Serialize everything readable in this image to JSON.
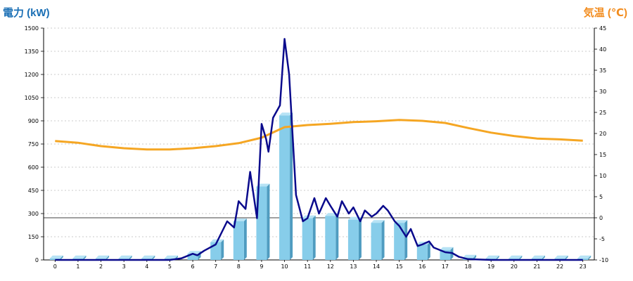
{
  "header": {
    "left_title": "電力 (kW)",
    "right_title": "気温 (℃)"
  },
  "colors": {
    "power_axis_title": "#1a6fb5",
    "temp_axis_title": "#f28c1e",
    "bar_front": "#87cdea",
    "bar_side": "#4f9cc0",
    "bar_top": "#b7e3f5",
    "power_line": "#0a0a8c",
    "temp_line": "#f5a623",
    "grid": "#bbbbbb"
  },
  "chart_data": {
    "type": "bar",
    "grid": true,
    "x_ticks": [
      "0",
      "1",
      "2",
      "3",
      "4",
      "5",
      "6",
      "7",
      "8",
      "9",
      "10",
      "11",
      "12",
      "13",
      "14",
      "15",
      "16",
      "17",
      "18",
      "19",
      "20",
      "21",
      "22",
      "23"
    ],
    "y_left": {
      "min": 0,
      "max": 1500,
      "ticks": [
        0,
        150,
        300,
        450,
        600,
        750,
        900,
        1050,
        1200,
        1350,
        1500
      ]
    },
    "y_right": {
      "min": -10,
      "max": 45,
      "ticks": [
        -10,
        -5,
        0,
        5,
        10,
        15,
        20,
        25,
        30,
        35,
        40,
        45
      ]
    },
    "series": [
      {
        "type": "bar",
        "axis": "left",
        "x": [
          0,
          1,
          2,
          3,
          4,
          5,
          6,
          7,
          8,
          9,
          10,
          11,
          12,
          13,
          14,
          15,
          16,
          17,
          18,
          19,
          20,
          21,
          22,
          23
        ],
        "values": [
          10,
          10,
          10,
          10,
          10,
          10,
          40,
          115,
          250,
          475,
          935,
          270,
          285,
          260,
          240,
          240,
          100,
          65,
          15,
          10,
          10,
          10,
          10,
          10
        ]
      },
      {
        "type": "line",
        "axis": "left",
        "x": [
          0,
          1,
          2,
          3,
          4,
          5,
          5.5,
          6,
          6.2,
          6.5,
          7,
          7.5,
          7.8,
          8,
          8.3,
          8.5,
          8.8,
          9,
          9.2,
          9.3,
          9.5,
          9.8,
          10,
          10.2,
          10.5,
          10.8,
          11,
          11.3,
          11.5,
          11.8,
          12,
          12.3,
          12.5,
          12.8,
          13,
          13.3,
          13.5,
          13.8,
          14,
          14.3,
          14.5,
          14.8,
          15,
          15.3,
          15.5,
          15.8,
          16,
          16.3,
          16.5,
          17,
          17.3,
          17.6,
          18,
          19,
          20,
          21,
          22,
          23
        ],
        "values": [
          0,
          0,
          0,
          0,
          0,
          0,
          10,
          40,
          30,
          60,
          100,
          250,
          210,
          380,
          330,
          570,
          270,
          880,
          780,
          700,
          920,
          1000,
          1430,
          1200,
          420,
          250,
          270,
          400,
          300,
          400,
          350,
          280,
          380,
          300,
          340,
          250,
          320,
          280,
          300,
          350,
          320,
          250,
          220,
          150,
          200,
          90,
          100,
          120,
          80,
          50,
          45,
          20,
          5,
          0,
          0,
          0,
          0,
          0
        ]
      },
      {
        "type": "line",
        "axis": "right",
        "x": [
          0,
          1,
          2,
          3,
          4,
          5,
          6,
          7,
          8,
          9,
          10,
          11,
          12,
          13,
          14,
          15,
          16,
          17,
          18,
          19,
          20,
          21,
          22,
          23
        ],
        "values": [
          18.2,
          17.8,
          17,
          16.5,
          16.2,
          16.2,
          16.5,
          17,
          17.7,
          19,
          21.5,
          22,
          22.3,
          22.7,
          22.9,
          23.2,
          23,
          22.5,
          21.3,
          20.2,
          19.4,
          18.8,
          18.6,
          18.3
        ]
      }
    ]
  }
}
